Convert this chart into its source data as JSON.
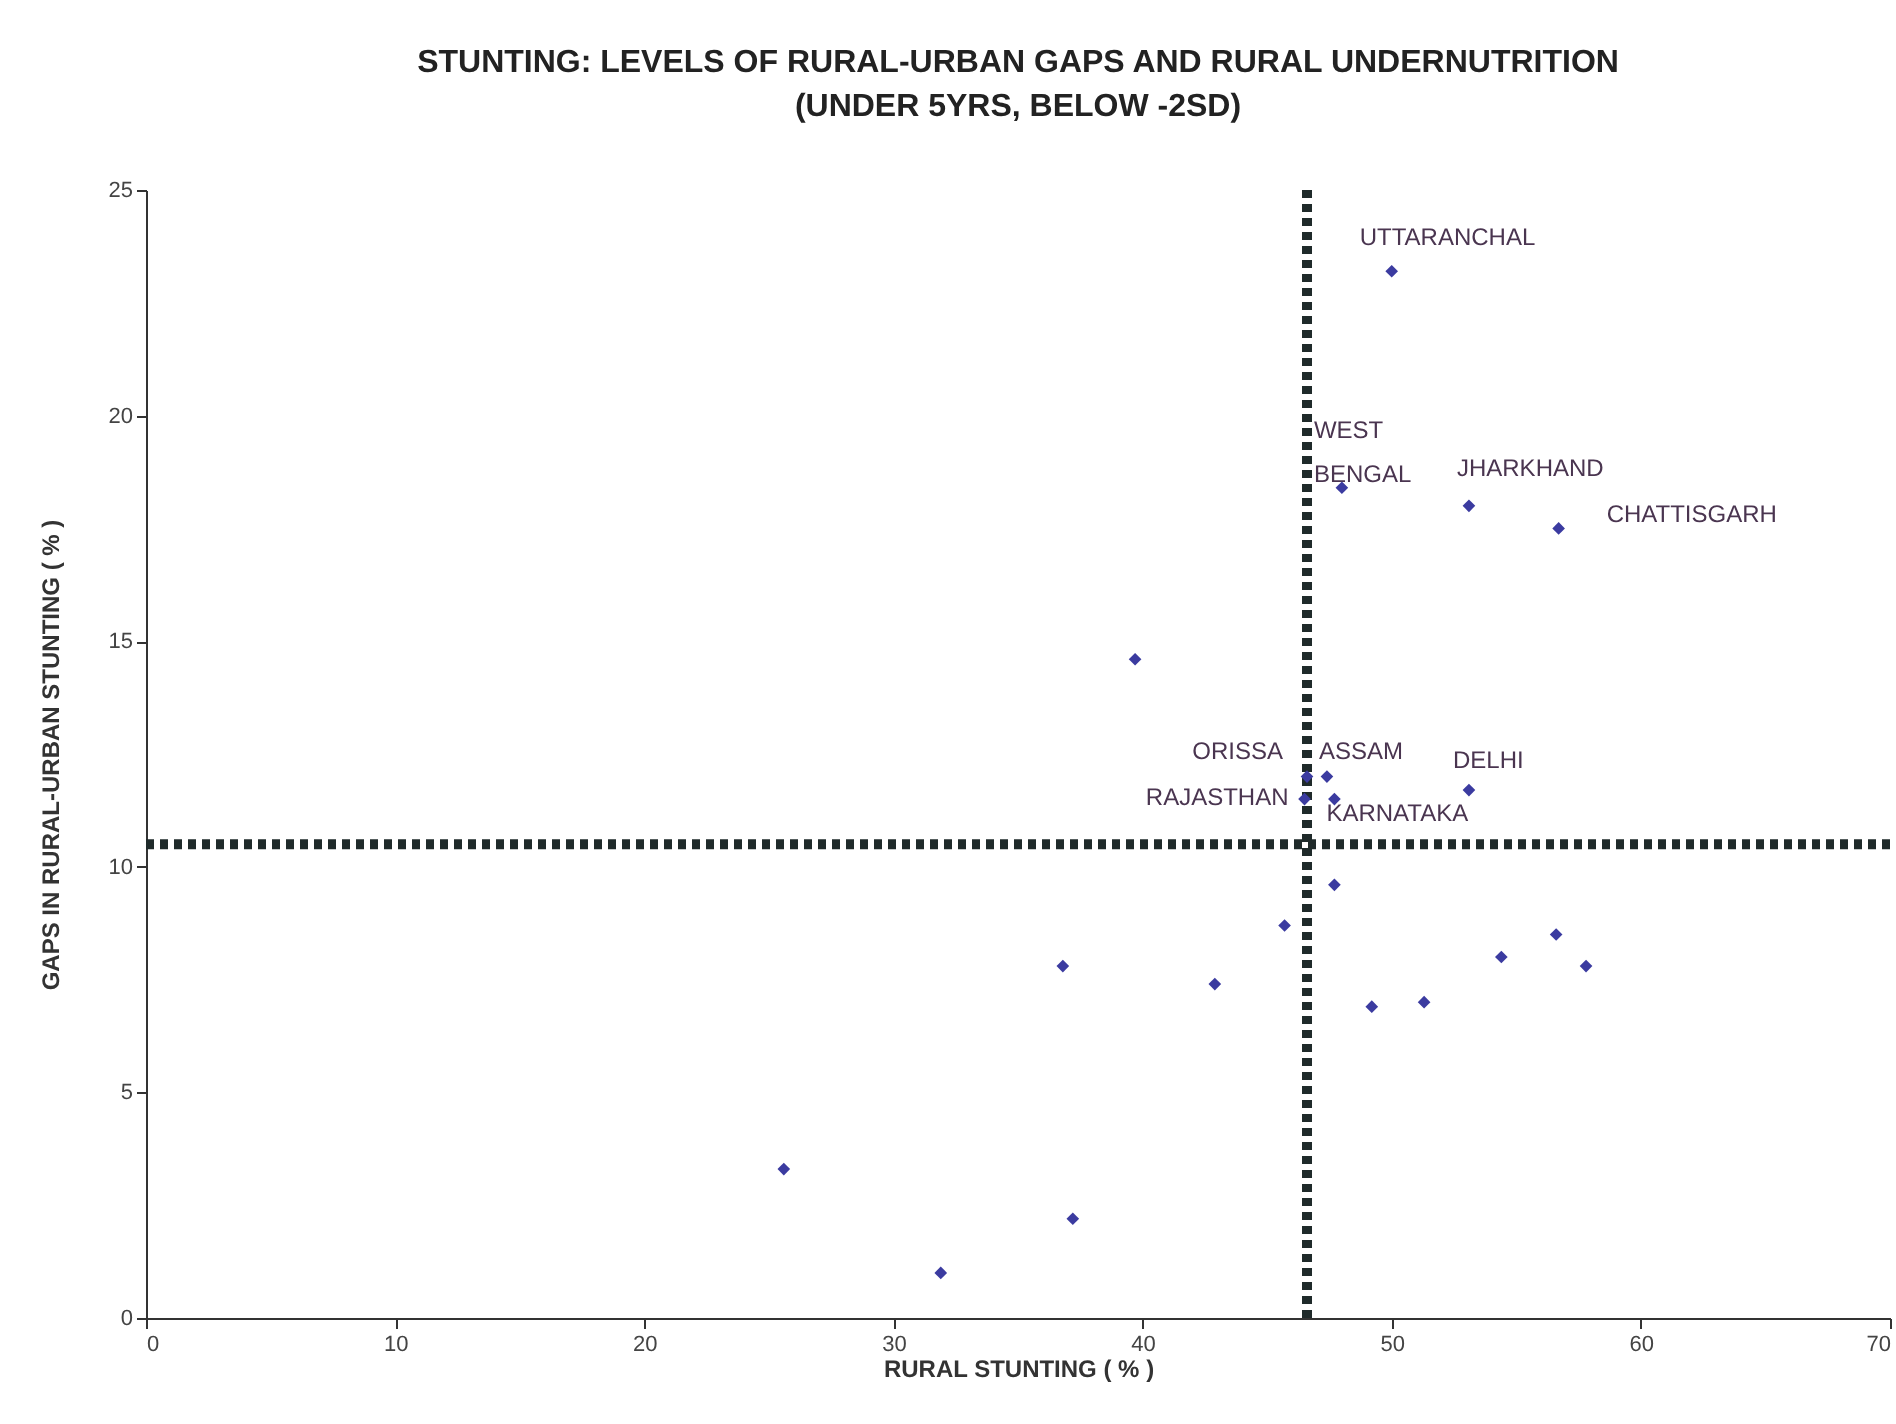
{
  "chart_data": {
    "type": "scatter",
    "title": "STUNTING: LEVELS OF RURAL-URBAN GAPS AND RURAL UNDERNUTRITION",
    "subtitle": "(UNDER 5YRS, BELOW -2SD)",
    "xlabel": "RURAL STUNTING ( % )",
    "ylabel": "GAPS IN RURAL-URBAN STUNTING ( % )",
    "x": [
      50.0,
      48.0,
      53.1,
      56.7,
      39.7,
      47.4,
      46.6,
      46.5,
      47.7,
      53.1,
      47.7,
      45.7,
      36.8,
      42.9,
      49.2,
      51.3,
      54.4,
      56.6,
      57.8,
      25.6,
      31.9,
      37.2
    ],
    "values": [
      23.2,
      18.4,
      18.0,
      17.5,
      14.6,
      12.0,
      12.0,
      11.5,
      11.5,
      11.7,
      9.6,
      8.7,
      7.8,
      7.4,
      6.9,
      7.0,
      8.0,
      8.5,
      7.8,
      3.3,
      1.0,
      2.2
    ],
    "color": "#3b3ba0",
    "marker": "diamond",
    "grid": false,
    "xlim": [
      0,
      70
    ],
    "xticks": [
      0,
      10,
      20,
      30,
      40,
      50,
      60,
      70
    ],
    "ylim": [
      0,
      25
    ],
    "yticks": [
      0,
      5,
      10,
      15,
      20,
      25
    ],
    "ref_lines": [
      {
        "axis": "x",
        "value": 46.6,
        "color": "#1f2a2a",
        "line_style": "dotted"
      },
      {
        "axis": "y",
        "value": 10.5,
        "color": "#1f2a2a",
        "line_style": "dotted"
      }
    ],
    "annotations": [
      {
        "text": "UTTARANCHAL",
        "x": 50.0,
        "y": 23.2
      },
      {
        "text": "WEST BENGAL",
        "x": 48.0,
        "y": 18.4
      },
      {
        "text": "JHARKHAND",
        "x": 53.1,
        "y": 18.0
      },
      {
        "text": "CHATTISGARH",
        "x": 56.7,
        "y": 17.5
      },
      {
        "text": "ASSAM",
        "x": 47.4,
        "y": 12.0
      },
      {
        "text": "ORISSA",
        "x": 46.6,
        "y": 12.0
      },
      {
        "text": "RAJASTHAN",
        "x": 46.5,
        "y": 11.5
      },
      {
        "text": "KARNATAKA",
        "x": 47.7,
        "y": 11.5
      },
      {
        "text": "DELHI",
        "x": 53.1,
        "y": 11.7
      }
    ]
  }
}
